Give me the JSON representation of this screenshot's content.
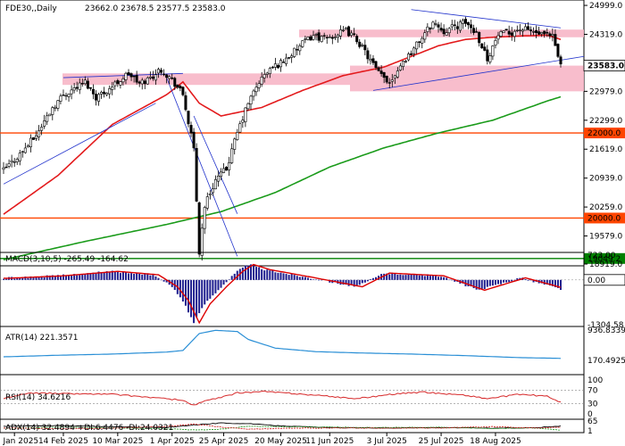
{
  "chart_data": [
    {
      "type": "candlestick",
      "title": "FDE30,,Daily",
      "ohlc_label": "23662.0 23678.5 23577.5 23583.0",
      "last_price": 23583.0,
      "last_price_label": "23583.0",
      "y_ticks": [
        "24999.0",
        "24319.0",
        "23583.0",
        "22979.0",
        "22299.0",
        "22000.0",
        "21619.0",
        "20939.0",
        "20259.0",
        "20000.0",
        "19579.0",
        "19049.2",
        "18919.0"
      ],
      "ylim": [
        18919,
        25000
      ],
      "x_ticks": [
        "23 Jan 2025",
        "14 Feb 2025",
        "10 Mar 2025",
        "1 Apr 2025",
        "25 Apr 2025",
        "20 May 2025",
        "11 Jun 2025",
        "3 Jul 2025",
        "25 Jul 2025",
        "18 Aug 2025"
      ],
      "horizontal_levels": [
        {
          "value": 22000.0,
          "label": "22000.0",
          "color": "#ff4500"
        },
        {
          "value": 20000.0,
          "label": "20000.0",
          "color": "#ff4500"
        },
        {
          "value": 19049.2,
          "label": "19049.2",
          "color": "#008000"
        }
      ],
      "zones": [
        {
          "from": 23130,
          "to": 23400,
          "color": "#f7b6c6"
        },
        {
          "from": 24250,
          "to": 24430,
          "color": "#f7b6c6"
        },
        {
          "from": 22979,
          "to": 23583,
          "color": "#f7b6c6"
        }
      ],
      "close_anchors": [
        [
          0,
          21120
        ],
        [
          6,
          21500
        ],
        [
          12,
          21950
        ],
        [
          18,
          22600
        ],
        [
          22,
          22900
        ],
        [
          26,
          23050
        ],
        [
          30,
          23200
        ],
        [
          34,
          22850
        ],
        [
          38,
          23000
        ],
        [
          42,
          23200
        ],
        [
          46,
          23400
        ],
        [
          50,
          23150
        ],
        [
          54,
          23300
        ],
        [
          58,
          23500
        ],
        [
          62,
          23250
        ],
        [
          66,
          22900
        ],
        [
          70,
          21600
        ],
        [
          72,
          19200
        ],
        [
          74,
          20300
        ],
        [
          78,
          20900
        ],
        [
          82,
          21150
        ],
        [
          86,
          22000
        ],
        [
          90,
          22700
        ],
        [
          94,
          23200
        ],
        [
          98,
          23500
        ],
        [
          102,
          23650
        ],
        [
          106,
          23850
        ],
        [
          110,
          24100
        ],
        [
          114,
          24300
        ],
        [
          118,
          24200
        ],
        [
          122,
          24300
        ],
        [
          126,
          24400
        ],
        [
          130,
          24200
        ],
        [
          134,
          23800
        ],
        [
          138,
          23400
        ],
        [
          142,
          23200
        ],
        [
          146,
          23600
        ],
        [
          150,
          23900
        ],
        [
          154,
          24250
        ],
        [
          158,
          24600
        ],
        [
          162,
          24400
        ],
        [
          166,
          24500
        ],
        [
          170,
          24600
        ],
        [
          174,
          24350
        ],
        [
          178,
          23750
        ],
        [
          182,
          24300
        ],
        [
          186,
          24350
        ],
        [
          190,
          24450
        ],
        [
          194,
          24400
        ],
        [
          198,
          24300
        ],
        [
          202,
          24250
        ],
        [
          205,
          23583
        ]
      ],
      "series": [
        {
          "name": "",
          "color": "#e31a1c",
          "anchors": [
            [
              0,
              20090
            ],
            [
              20,
              21000
            ],
            [
              40,
              22200
            ],
            [
              60,
              22900
            ],
            [
              66,
              23200
            ],
            [
              72,
              22700
            ],
            [
              80,
              22400
            ],
            [
              95,
              22600
            ],
            [
              110,
              23000
            ],
            [
              125,
              23350
            ],
            [
              140,
              23550
            ],
            [
              150,
              23800
            ],
            [
              160,
              24050
            ],
            [
              170,
              24200
            ],
            [
              180,
              24250
            ],
            [
              190,
              24280
            ],
            [
              200,
              24300
            ],
            [
              205,
              24200
            ]
          ]
        },
        {
          "name": "",
          "color": "#1a9b1a",
          "anchors": [
            [
              0,
              19020
            ],
            [
              30,
              19450
            ],
            [
              60,
              19850
            ],
            [
              80,
              20150
            ],
            [
              100,
              20600
            ],
            [
              120,
              21200
            ],
            [
              140,
              21650
            ],
            [
              160,
              22000
            ],
            [
              180,
              22300
            ],
            [
              200,
              22750
            ],
            [
              205,
              22850
            ]
          ]
        }
      ],
      "trend_lines": [
        {
          "color": "#2233cc",
          "points": [
            [
              0,
              20800
            ],
            [
              56,
              22700
            ]
          ]
        },
        {
          "color": "#2233cc",
          "points": [
            [
              22,
              23300
            ],
            [
              66,
              23400
            ]
          ]
        },
        {
          "color": "#2233cc",
          "points": [
            [
              60,
              23300
            ],
            [
              86,
              19100
            ]
          ]
        },
        {
          "color": "#2233cc",
          "points": [
            [
              70,
              22400
            ],
            [
              86,
              20100
            ]
          ]
        },
        {
          "color": "#2233cc",
          "points": [
            [
              136,
              23000
            ],
            [
              214,
              23800
            ]
          ]
        },
        {
          "color": "#2233cc",
          "points": [
            [
              150,
              24900
            ],
            [
              205,
              24470
            ]
          ]
        }
      ]
    },
    {
      "type": "histogram",
      "title": "MACD(3,10,5) -265.49 -164.62",
      "y_ticks": [
        "723.00",
        "0.00",
        "-1304.58"
      ],
      "ylim": [
        -1304.58,
        723
      ],
      "anchors": [
        [
          0,
          50
        ],
        [
          20,
          120
        ],
        [
          40,
          250
        ],
        [
          55,
          150
        ],
        [
          62,
          -200
        ],
        [
          66,
          -600
        ],
        [
          70,
          -1250
        ],
        [
          74,
          -700
        ],
        [
          80,
          -200
        ],
        [
          86,
          250
        ],
        [
          90,
          450
        ],
        [
          96,
          300
        ],
        [
          110,
          100
        ],
        [
          130,
          -200
        ],
        [
          140,
          200
        ],
        [
          160,
          120
        ],
        [
          175,
          -300
        ],
        [
          190,
          60
        ],
        [
          200,
          -150
        ],
        [
          205,
          -265
        ]
      ]
    },
    {
      "type": "line",
      "title": "ATR(14) 221.3571",
      "y_ticks": [
        "936.8339",
        "170.4925"
      ],
      "ylim": [
        170.4925,
        936.8339
      ],
      "anchors": [
        [
          0,
          260
        ],
        [
          20,
          300
        ],
        [
          40,
          330
        ],
        [
          60,
          380
        ],
        [
          66,
          420
        ],
        [
          72,
          850
        ],
        [
          78,
          930
        ],
        [
          86,
          900
        ],
        [
          90,
          700
        ],
        [
          100,
          480
        ],
        [
          115,
          390
        ],
        [
          130,
          360
        ],
        [
          150,
          330
        ],
        [
          170,
          290
        ],
        [
          190,
          240
        ],
        [
          205,
          221
        ]
      ]
    },
    {
      "type": "line",
      "title": "RSI(14) 34.6216",
      "y_ticks": [
        "100",
        "70",
        "30",
        "0"
      ],
      "ylim": [
        0,
        100
      ],
      "levels": [
        70,
        30
      ],
      "anchors": [
        [
          0,
          45
        ],
        [
          10,
          62
        ],
        [
          20,
          60
        ],
        [
          40,
          58
        ],
        [
          55,
          48
        ],
        [
          66,
          40
        ],
        [
          70,
          25
        ],
        [
          74,
          38
        ],
        [
          80,
          48
        ],
        [
          86,
          62
        ],
        [
          96,
          66
        ],
        [
          110,
          58
        ],
        [
          130,
          45
        ],
        [
          145,
          60
        ],
        [
          155,
          64
        ],
        [
          170,
          55
        ],
        [
          178,
          45
        ],
        [
          190,
          58
        ],
        [
          200,
          52
        ],
        [
          205,
          35
        ]
      ]
    },
    {
      "type": "line",
      "title": "ADX(14) 32.4894 +DI:6.4476 -DI:24.0321",
      "y_ticks": [
        "65",
        "1"
      ],
      "ylim": [
        1,
        65
      ],
      "series": [
        {
          "name": "ADX",
          "color": "#000000",
          "anchors": [
            [
              0,
              30
            ],
            [
              20,
              35
            ],
            [
              40,
              28
            ],
            [
              60,
              22
            ],
            [
              70,
              40
            ],
            [
              80,
              52
            ],
            [
              90,
              48
            ],
            [
              100,
              35
            ],
            [
              120,
              22
            ],
            [
              140,
              20
            ],
            [
              160,
              22
            ],
            [
              180,
              18
            ],
            [
              195,
              22
            ],
            [
              205,
              32
            ]
          ]
        },
        {
          "name": "+DI",
          "color": "#2c9a2c",
          "anchors": [
            [
              0,
              18
            ],
            [
              20,
              25
            ],
            [
              40,
              20
            ],
            [
              60,
              15
            ],
            [
              70,
              6
            ],
            [
              80,
              12
            ],
            [
              90,
              30
            ],
            [
              100,
              28
            ],
            [
              120,
              25
            ],
            [
              140,
              22
            ],
            [
              160,
              24
            ],
            [
              180,
              16
            ],
            [
              195,
              20
            ],
            [
              205,
              6
            ]
          ]
        },
        {
          "name": "-DI",
          "color": "#cc2222",
          "anchors": [
            [
              0,
              20
            ],
            [
              20,
              15
            ],
            [
              40,
              18
            ],
            [
              60,
              30
            ],
            [
              70,
              45
            ],
            [
              80,
              25
            ],
            [
              90,
              12
            ],
            [
              100,
              16
            ],
            [
              120,
              20
            ],
            [
              140,
              18
            ],
            [
              160,
              20
            ],
            [
              180,
              28
            ],
            [
              195,
              20
            ],
            [
              205,
              24
            ]
          ]
        }
      ]
    }
  ]
}
